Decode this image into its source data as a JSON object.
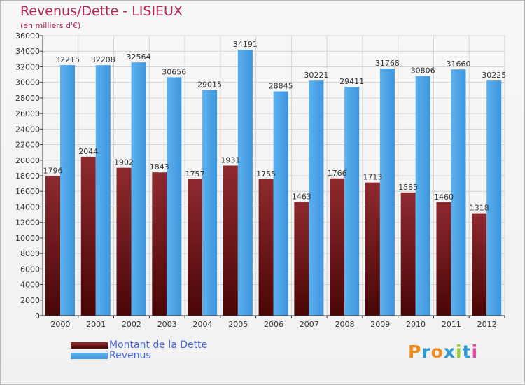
{
  "header": {
    "title": "Revenus/Dette - LISIEUX",
    "subtitle": "(en milliers d'€)"
  },
  "legend": {
    "debt_label": "Montant de la Dette",
    "revenue_label": "Revenus"
  },
  "logo": {
    "text": "Proxiti",
    "letters": [
      "P",
      "r",
      "o",
      "x",
      "i",
      "t",
      "i"
    ],
    "letter_colors": [
      "#f08c1e",
      "#2c9ad8",
      "#f08c1e",
      "#2c9ad8",
      "#9acd32",
      "#2c9ad8",
      "#e84a9c"
    ]
  },
  "colors": {
    "debt": "#6e1010",
    "debt_light": "#8e2a2f",
    "revenue": "#4aa3e8",
    "revenue_dark": "#2f87d2",
    "title": "#b5245a"
  },
  "chart_data": {
    "type": "bar",
    "title": "Revenus/Dette - LISIEUX",
    "subtitle": "(en milliers d'€)",
    "categories": [
      "2000",
      "2001",
      "2002",
      "2003",
      "2004",
      "2005",
      "2006",
      "2007",
      "2008",
      "2009",
      "2010",
      "2011",
      "2012"
    ],
    "series": [
      {
        "name": "Montant de la Dette",
        "values": [
          17960,
          20440,
          19020,
          18430,
          17570,
          19310,
          17550,
          14630,
          17660,
          17130,
          15850,
          14600,
          13180
        ],
        "labels": [
          "1796",
          "2044",
          "1902",
          "1843",
          "1757",
          "1931",
          "1755",
          "1463",
          "1766",
          "1713",
          "1585",
          "1460",
          "1318"
        ],
        "color": "#6e1010"
      },
      {
        "name": "Revenus",
        "values": [
          32215,
          32208,
          32564,
          30656,
          29015,
          34191,
          28845,
          30221,
          29411,
          31768,
          30806,
          31660,
          30225
        ],
        "labels": [
          "32215",
          "32208",
          "32564",
          "30656",
          "29015",
          "34191",
          "28845",
          "30221",
          "29411",
          "31768",
          "30806",
          "31660",
          "30225"
        ],
        "color": "#4aa3e8"
      }
    ],
    "ylim": [
      0,
      36000
    ],
    "yticks": [
      0,
      2000,
      4000,
      6000,
      8000,
      10000,
      12000,
      14000,
      16000,
      18000,
      20000,
      22000,
      24000,
      26000,
      28000,
      30000,
      32000,
      34000,
      36000
    ],
    "grid": true,
    "legend_position": "bottom-left"
  }
}
